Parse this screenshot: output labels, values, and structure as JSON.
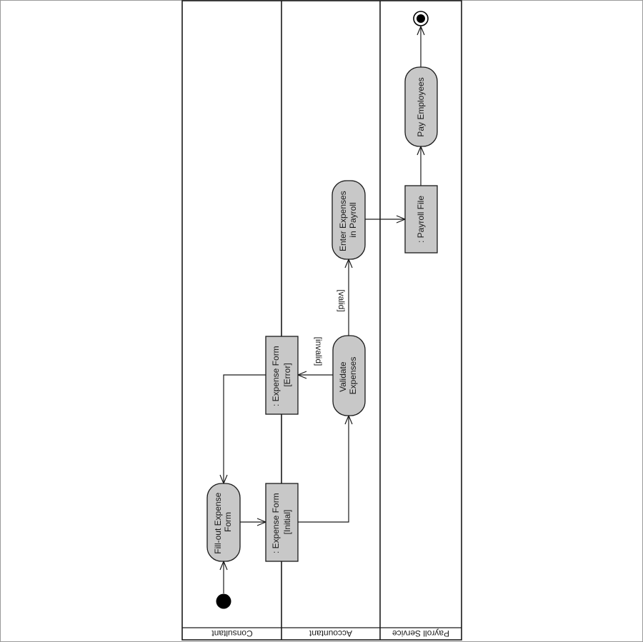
{
  "diagram": {
    "lanes": [
      {
        "id": "consultant",
        "label": "Consultant"
      },
      {
        "id": "accountant",
        "label": "Accountant"
      },
      {
        "id": "payroll",
        "label": "Payroll Service"
      }
    ],
    "nodes": {
      "fill_out": {
        "kind": "action",
        "lines": [
          "Fill-out Expense",
          "Form"
        ]
      },
      "form_initial": {
        "kind": "object",
        "lines": [
          ": Expense Form",
          "[Initial]"
        ]
      },
      "validate": {
        "kind": "action",
        "lines": [
          "Validate",
          "Expenses"
        ]
      },
      "form_error": {
        "kind": "object",
        "lines": [
          ": Expense Form",
          "[Error]"
        ]
      },
      "enter_payroll": {
        "kind": "action",
        "lines": [
          "Enter Expenses",
          "in Payroll"
        ]
      },
      "payroll_file": {
        "kind": "object",
        "lines": [
          ": Payroll File"
        ]
      },
      "pay_employees": {
        "kind": "action",
        "lines": [
          "Pay Employees"
        ]
      }
    },
    "guards": {
      "invalid": "[invalid]",
      "valid": "[valid]"
    },
    "colors": {
      "node_fill": "#c8c8c8",
      "stroke": "#1a1a1a",
      "background": "#ffffff"
    }
  }
}
